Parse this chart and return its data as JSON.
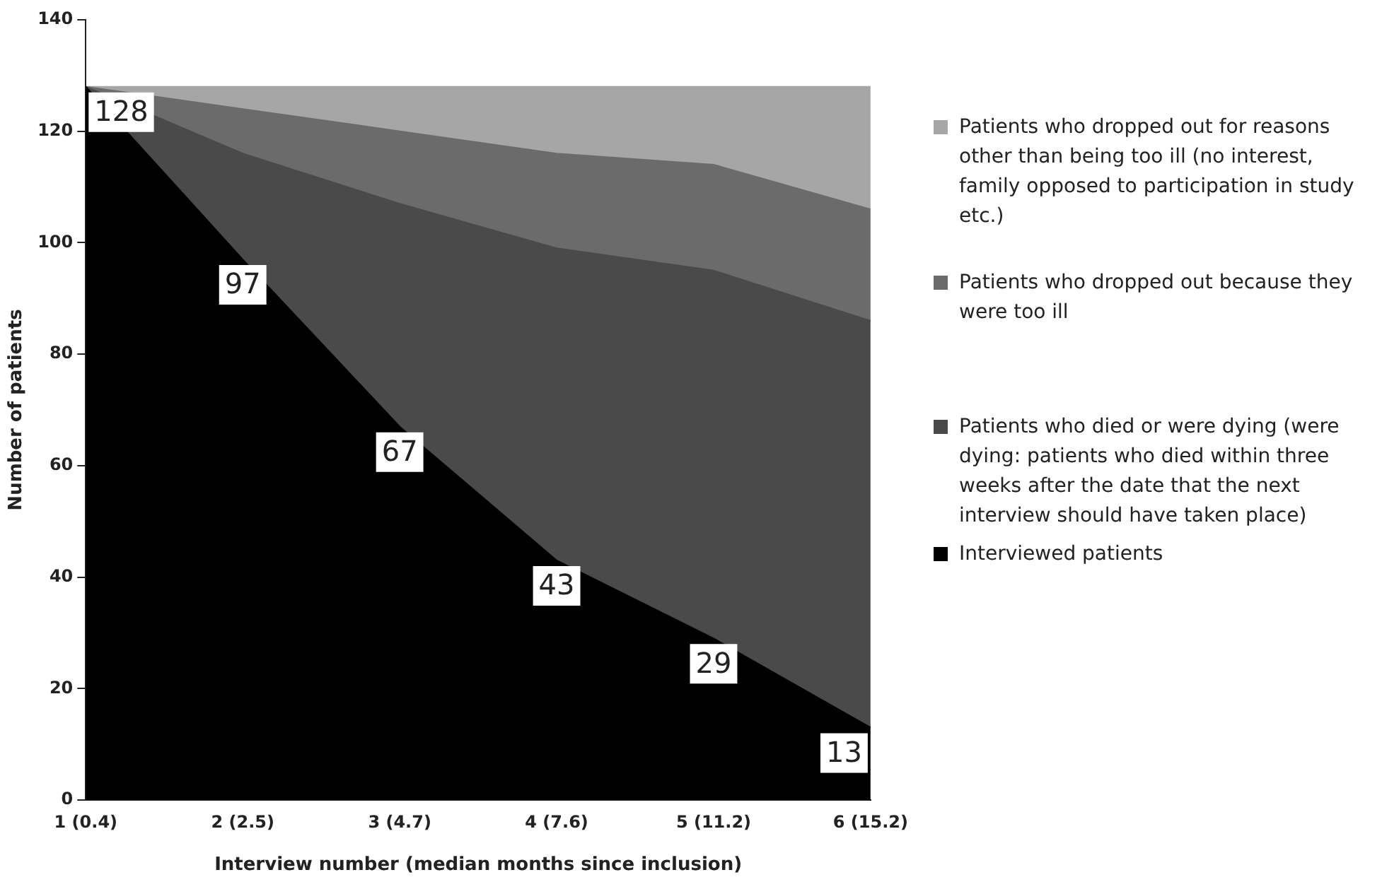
{
  "chart_data": {
    "type": "area",
    "stacked": true,
    "xlabel": "Interview number (median months since inclusion)",
    "ylabel": "Number of patients",
    "categories": [
      "1 (0.4)",
      "2 (2.5)",
      "3 (4.7)",
      "4 (7.6)",
      "5 (11.2)",
      "6 (15.2)"
    ],
    "series": [
      {
        "name": "Interviewed patients",
        "color": "#000000",
        "values": [
          128,
          97,
          67,
          43,
          29,
          13
        ],
        "value_labels": [
          "128",
          "97",
          "67",
          "43",
          "29",
          "13"
        ]
      },
      {
        "name": "Patients who died or were dying (were dying: patients who died within three weeks after the date that the next interview should have taken place)",
        "color": "#4a4a4a",
        "values": [
          0,
          19,
          40,
          56,
          66,
          73
        ]
      },
      {
        "name": "Patients who dropped out because they were too ill",
        "color": "#6b6b6b",
        "values": [
          0,
          8,
          13,
          17,
          19,
          20
        ]
      },
      {
        "name": "Patients who dropped out for reasons other than being too ill (no interest, family opposed to participation in study etc.)",
        "color": "#a6a6a6",
        "values": [
          0,
          4,
          8,
          12,
          14,
          22
        ]
      }
    ],
    "ylim": [
      0,
      140
    ],
    "yticks": [
      0,
      20,
      40,
      60,
      80,
      100,
      120,
      140
    ],
    "grid": false,
    "legend": "right"
  }
}
